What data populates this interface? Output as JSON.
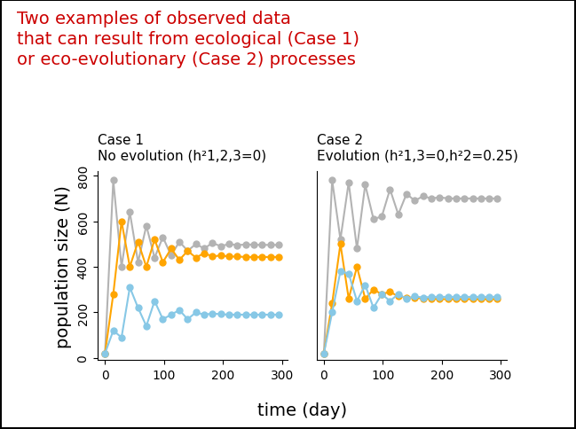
{
  "title": "Two examples of observed data\nthat can result from ecological (Case 1)\nor eco-evolutionary (Case 2) processes",
  "xlabel": "time (day)",
  "ylabel": "population size (N)",
  "chart_data": [
    {
      "type": "line",
      "title": "Case 1\nNo evolution (h²1,2,3=0)",
      "x": [
        0,
        14,
        28,
        42,
        56,
        70,
        84,
        98,
        112,
        126,
        140,
        154,
        168,
        182,
        196,
        210,
        224,
        238,
        252,
        266,
        280,
        294
      ],
      "xlim": [
        -12,
        310
      ],
      "xticks": [
        0,
        100,
        200,
        300
      ],
      "ylim": [
        -10,
        820
      ],
      "yticks": [
        0,
        200,
        400,
        600,
        800
      ],
      "marker": "circle",
      "line_style": "solid",
      "series": [
        {
          "color": "#b3b3b3",
          "values": [
            20,
            780,
            400,
            640,
            420,
            580,
            440,
            530,
            450,
            510,
            470,
            500,
            480,
            505,
            490,
            500,
            495,
            498,
            497,
            496,
            496,
            496
          ]
        },
        {
          "color": "#ffa500",
          "values": [
            20,
            280,
            600,
            400,
            510,
            400,
            520,
            420,
            480,
            430,
            470,
            440,
            460,
            445,
            450,
            445,
            445,
            443,
            443,
            443,
            443,
            443
          ]
        },
        {
          "color": "#87c8e6",
          "values": [
            20,
            120,
            90,
            310,
            220,
            140,
            250,
            170,
            190,
            210,
            170,
            200,
            190,
            195,
            192,
            190,
            190,
            190,
            190,
            190,
            190,
            190
          ]
        }
      ]
    },
    {
      "type": "line",
      "title": "Case 2\nEvolution (h²1,3=0,h²2=0.25)",
      "x": [
        0,
        14,
        28,
        42,
        56,
        70,
        84,
        98,
        112,
        126,
        140,
        154,
        168,
        182,
        196,
        210,
        224,
        238,
        252,
        266,
        280,
        294
      ],
      "xlim": [
        -12,
        310
      ],
      "xticks": [
        0,
        100,
        200,
        300
      ],
      "ylim": [
        -10,
        820
      ],
      "tick_labels": "x",
      "marker": "circle",
      "line_style": "solid",
      "series": [
        {
          "color": "#b3b3b3",
          "values": [
            20,
            780,
            520,
            770,
            480,
            760,
            610,
            620,
            740,
            630,
            720,
            690,
            710,
            700,
            705,
            700,
            700,
            700,
            700,
            700,
            700,
            700
          ]
        },
        {
          "color": "#ffa500",
          "values": [
            20,
            240,
            500,
            260,
            400,
            260,
            300,
            280,
            290,
            270,
            265,
            265,
            260,
            260,
            258,
            258,
            258,
            258,
            258,
            258,
            258,
            258
          ]
        },
        {
          "color": "#87c8e6",
          "values": [
            20,
            200,
            380,
            370,
            250,
            320,
            220,
            280,
            250,
            280,
            260,
            270,
            265,
            268,
            268,
            268,
            268,
            268,
            268,
            268,
            268,
            268
          ]
        }
      ]
    }
  ]
}
